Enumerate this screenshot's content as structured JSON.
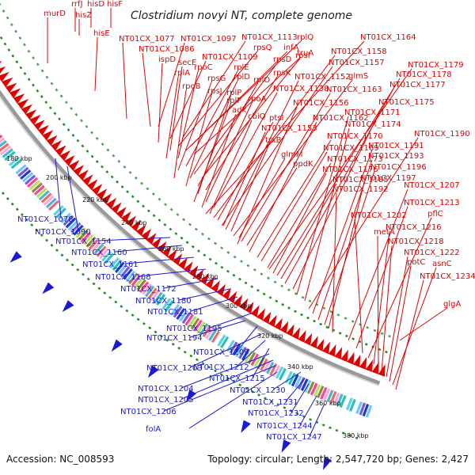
{
  "title": "Clostridium novyi NT, complete genome",
  "footer": {
    "accession": "Accession: NC_008593",
    "stats": "Topology: circular; Length: 2,547,720 bp; Genes: 2,427"
  },
  "colors": {
    "forward_gene": "#e00000",
    "reverse_gene": "#1a1ad0",
    "backbone": "#9a9a9a",
    "gc_dots": "#1e8c1e"
  },
  "kbp_ticks": [
    "180 kbp",
    "200 kbp",
    "220 kbp",
    "240 kbp",
    "260 kbp",
    "280 kbp",
    "300 kbp",
    "320 kbp",
    "340 kbp",
    "360 kbp",
    "380 kbp"
  ],
  "forward_labels": [
    "murD",
    "rrfJ",
    "hisD",
    "hisF",
    "hisZ",
    "hisE",
    "NT01CX_1077",
    "NT01CX_1097",
    "NT01CX_1113",
    "rplQ",
    "NT01CX_1086",
    "NT01CX_1109",
    "rpsQ",
    "infA",
    "truA",
    "ispD",
    "secE",
    "rpoC",
    "rplE",
    "rpsD",
    "rpsI",
    "rplA",
    "rpsG",
    "rplD",
    "rplO",
    "rpsK",
    "rpoB",
    "rpsJ",
    "rplP",
    "rpoA",
    "NT01CX_1138",
    "rplF",
    "adk",
    "cbiQ",
    "ptsI",
    "NT01CX_1153",
    "trxB",
    "glmM",
    "ppdK",
    "NT01CX_1164",
    "NT01CX_1158",
    "NT01CX_1157",
    "NT01CX_1152",
    "glmS",
    "NT01CX_1163",
    "NT01CX_1156",
    "NT01CX_1162",
    "NT01CX_1170",
    "NT01CX_1169",
    "NT01CX_1173",
    "NT01CX_1176",
    "NT01CX_1185",
    "NT01CX_1179",
    "NT01CX_1178",
    "NT01CX_1177",
    "NT01CX_1175",
    "NT01CX_1171",
    "NT01CX_1174",
    "NT01CX_1190",
    "NT01CX_1191",
    "NT01CX_1193",
    "NT01CX_1196",
    "NT01CX_1197",
    "NT01CX_1192",
    "NT01CX_1207",
    "NT01CX_1213",
    "NT01CX_1202",
    "pflC",
    "NT01CX_1216",
    "metA",
    "NT01CX_1218",
    "NT01CX_1222",
    "potC",
    "asnC",
    "NT01CX_1234",
    "glgA"
  ],
  "reverse_labels": [
    "NT01CX_1078",
    "NT01CX_1090",
    "NT01CX_1154",
    "NT01CX_1160",
    "NT01CX_1161",
    "NT01CX_1168",
    "NT01CX_1172",
    "NT01CX_1180",
    "NT01CX_1181",
    "NT01CX_1195",
    "NT01CX_1194",
    "NT01CX_1209",
    "NT01CX_1203",
    "NT01CX_1212",
    "NT01CX_1215",
    "NT01CX_1204",
    "NT01CX_1230",
    "NT01CX_1205",
    "NT01CX_1231",
    "NT01CX_1206",
    "NT01CX_1232",
    "folA",
    "NT01CX_1244",
    "NT01CX_1247"
  ]
}
